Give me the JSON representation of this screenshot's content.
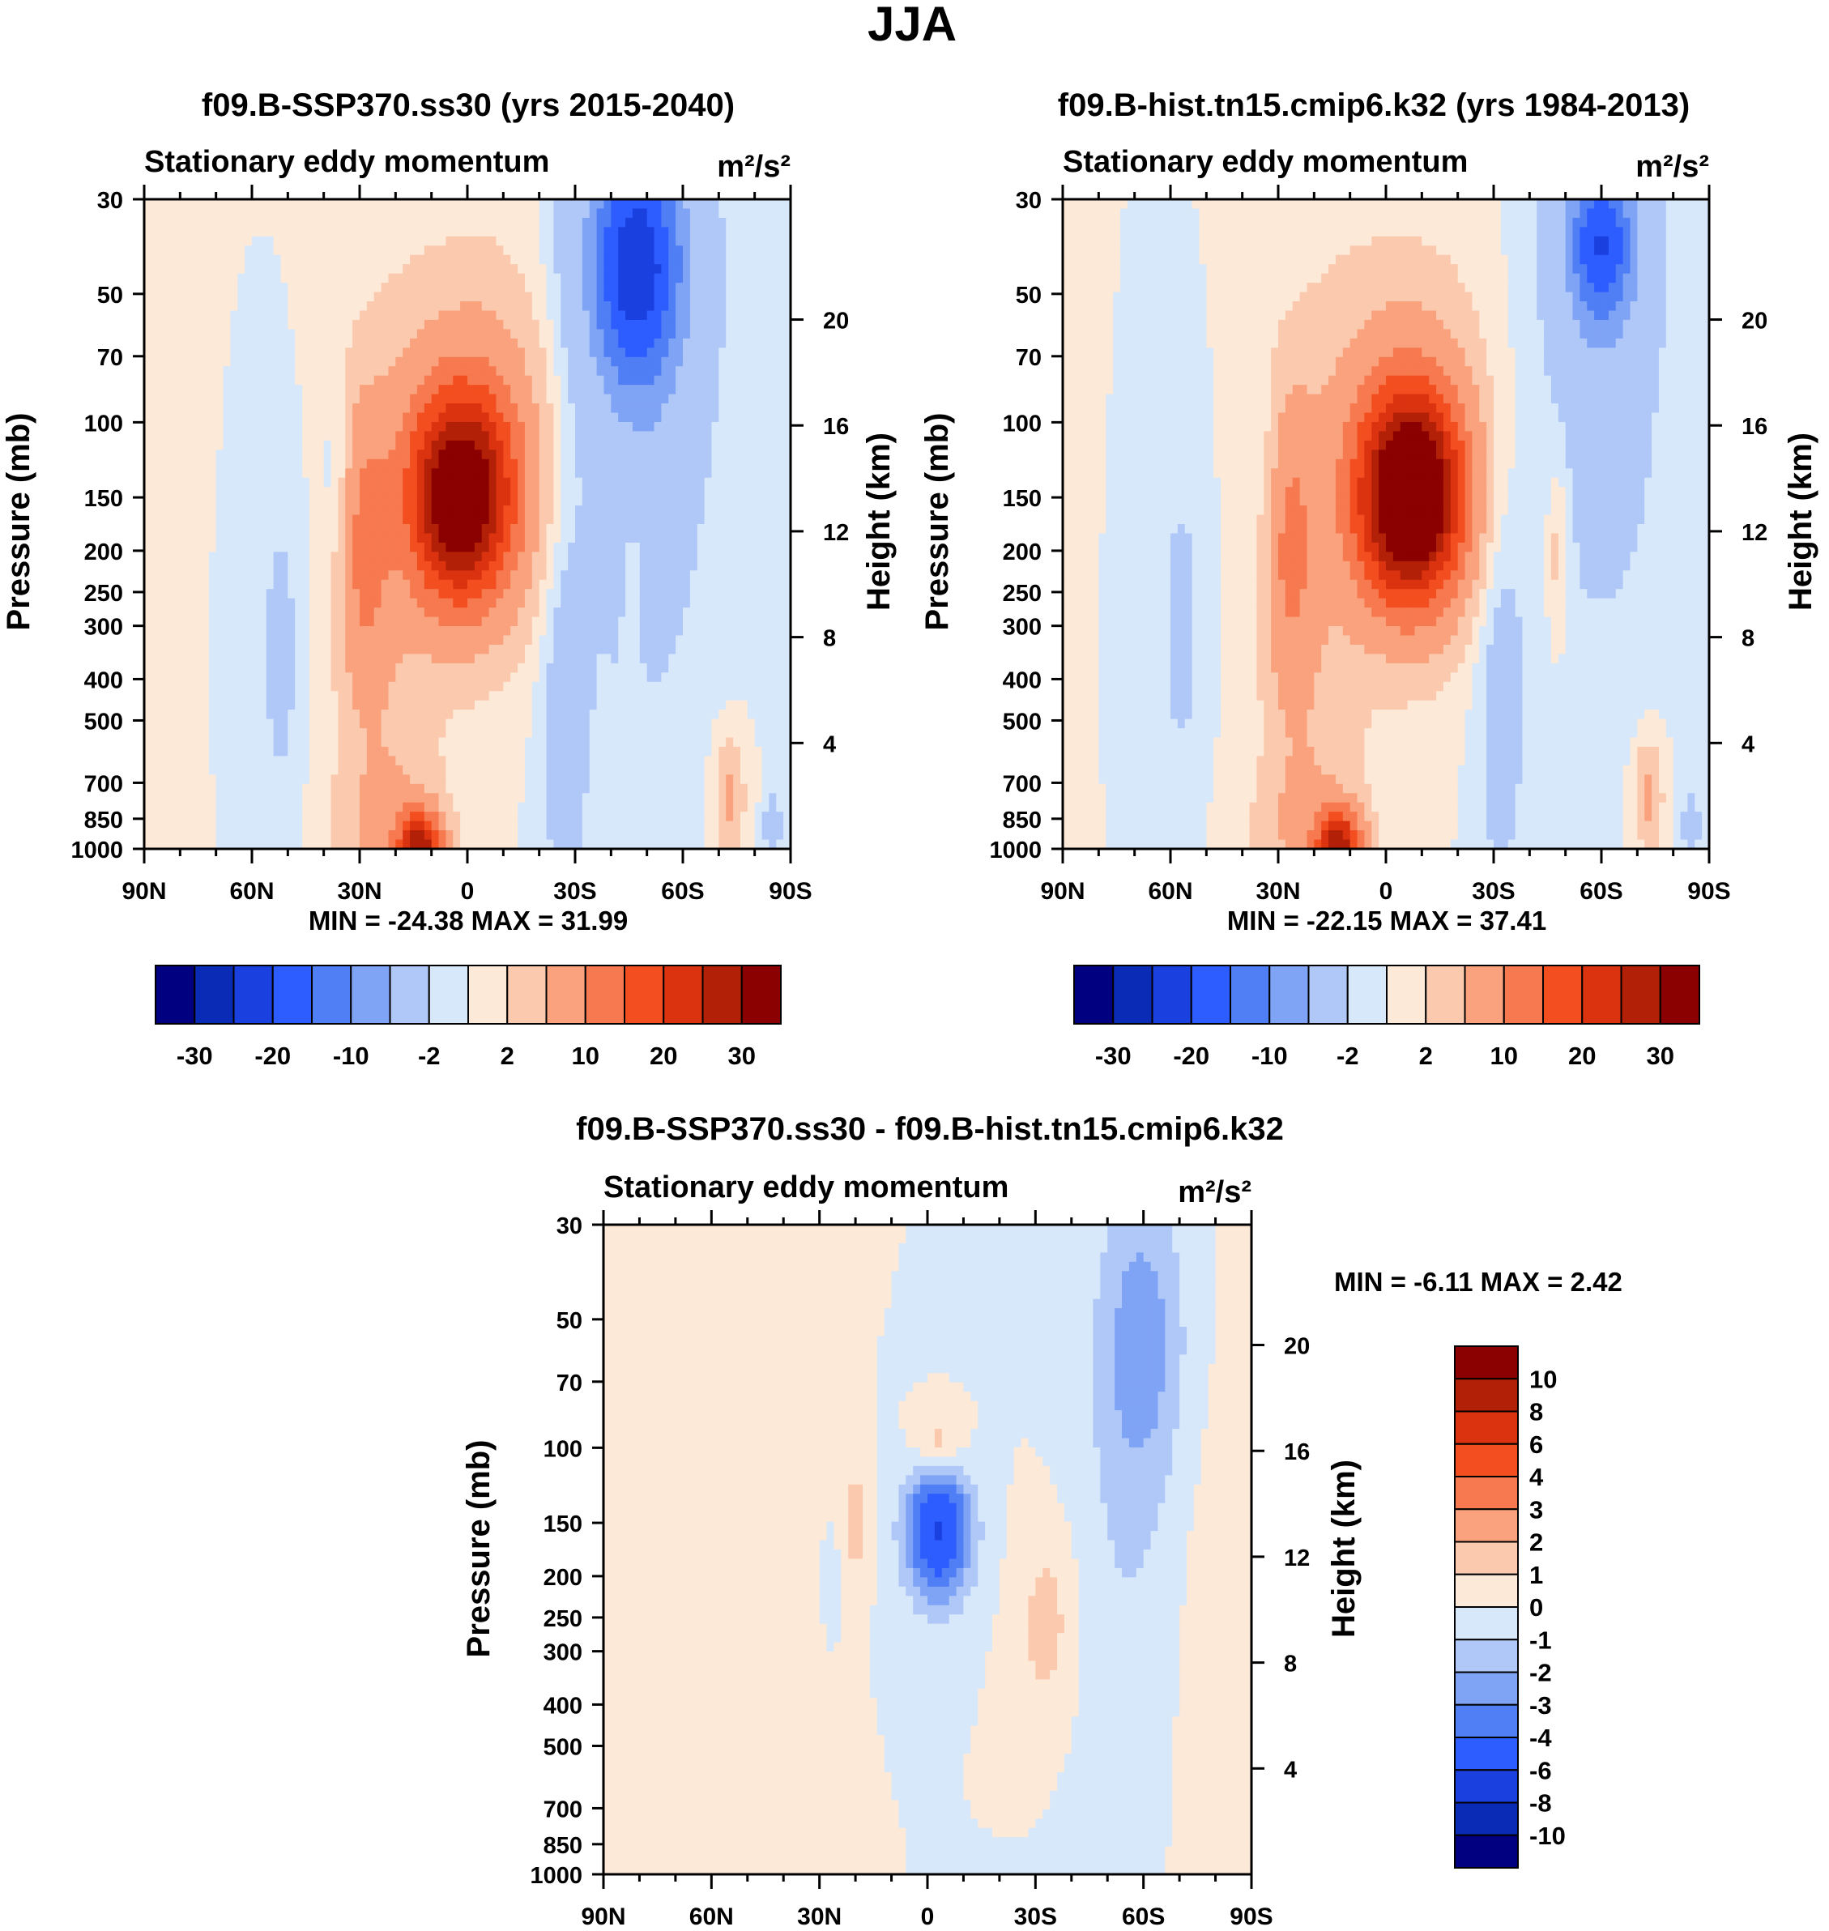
{
  "figure_title": "JJA",
  "chart_data": [
    {
      "type": "contour",
      "title": "f09.B-SSP370.ss30 (yrs 2015-2040)",
      "subtitle_left": "Stationary eddy momentum",
      "units": "m²/s²",
      "xlabel": "",
      "ylabel": "Pressure (mb)",
      "y2label": "Height (km)",
      "xticks": [
        "90N",
        "60N",
        "30N",
        "0",
        "30S",
        "60S",
        "90S"
      ],
      "yticks": [
        30,
        50,
        70,
        100,
        150,
        200,
        250,
        300,
        400,
        500,
        700,
        850,
        1000
      ],
      "y2ticks": [
        4,
        8,
        12,
        16,
        20
      ],
      "ylim": [
        1000,
        30
      ],
      "xlim": [
        90,
        -90
      ],
      "min": -24.38,
      "max": 31.99,
      "stats_text": "MIN = -24.38  MAX =  31.99",
      "colorbar_orientation": "horizontal",
      "colorbar_labels": [
        "-30",
        "-20",
        "-10",
        "-2",
        "2",
        "10",
        "20",
        "30"
      ],
      "blobs": [
        {
          "lat": 2,
          "p": 150,
          "lat_halfwidth": 14,
          "p_spread": 0.55,
          "value": 31.99
        },
        {
          "lat": -3,
          "p": 120,
          "lat_halfwidth": 22,
          "p_spread": 1.0,
          "value": 8
        },
        {
          "lat": 29,
          "p": 200,
          "lat_halfwidth": 7,
          "p_spread": 0.8,
          "value": 9
        },
        {
          "lat": 22,
          "p": 400,
          "lat_halfwidth": 14,
          "p_spread": 2.0,
          "value": 3
        },
        {
          "lat": 13,
          "p": 980,
          "lat_halfwidth": 6,
          "p_spread": 0.18,
          "value": 25
        },
        {
          "lat": 22,
          "p": 900,
          "lat_halfwidth": 15,
          "p_spread": 0.4,
          "value": 4
        },
        {
          "lat": 52,
          "p": 350,
          "lat_halfwidth": 6,
          "p_spread": 0.9,
          "value": -3
        },
        {
          "lat": 36,
          "p": 140,
          "lat_halfwidth": 4,
          "p_spread": 0.5,
          "value": -3
        },
        {
          "lat": -47,
          "p": 42,
          "lat_halfwidth": 14,
          "p_spread": 0.7,
          "value": -24.38
        },
        {
          "lat": -48,
          "p": 80,
          "lat_halfwidth": 18,
          "p_spread": 1.6,
          "value": -6
        },
        {
          "lat": -27,
          "p": 450,
          "lat_halfwidth": 7,
          "p_spread": 1.2,
          "value": -4
        },
        {
          "lat": -73,
          "p": 750,
          "lat_halfwidth": 4,
          "p_spread": 0.3,
          "value": 6
        },
        {
          "lat": -85,
          "p": 880,
          "lat_halfwidth": 2,
          "p_spread": 0.15,
          "value": -8
        },
        {
          "lat": -46,
          "p": 220,
          "lat_halfwidth": 3,
          "p_spread": 0.5,
          "value": 3
        }
      ]
    },
    {
      "type": "contour",
      "title": "f09.B-hist.tn15.cmip6.k32 (yrs 1984-2013)",
      "subtitle_left": "Stationary eddy momentum",
      "units": "m²/s²",
      "xlabel": "",
      "ylabel": "Pressure (mb)",
      "y2label": "Height (km)",
      "xticks": [
        "90N",
        "60N",
        "30N",
        "0",
        "30S",
        "60S",
        "90S"
      ],
      "yticks": [
        30,
        50,
        70,
        100,
        150,
        200,
        250,
        300,
        400,
        500,
        700,
        850,
        1000
      ],
      "y2ticks": [
        4,
        8,
        12,
        16,
        20
      ],
      "ylim": [
        1000,
        30
      ],
      "xlim": [
        90,
        -90
      ],
      "min": -22.15,
      "max": 37.41,
      "stats_text": "MIN = -22.15  MAX =  37.41",
      "colorbar_orientation": "horizontal",
      "colorbar_labels": [
        "-30",
        "-20",
        "-10",
        "-2",
        "2",
        "10",
        "20",
        "30"
      ],
      "blobs": [
        {
          "lat": -7,
          "p": 150,
          "lat_halfwidth": 14,
          "p_spread": 0.55,
          "value": 37.41
        },
        {
          "lat": -5,
          "p": 120,
          "lat_halfwidth": 22,
          "p_spread": 1.0,
          "value": 8
        },
        {
          "lat": 27,
          "p": 200,
          "lat_halfwidth": 7,
          "p_spread": 0.8,
          "value": 9
        },
        {
          "lat": 20,
          "p": 400,
          "lat_halfwidth": 14,
          "p_spread": 2.0,
          "value": 3
        },
        {
          "lat": 13,
          "p": 980,
          "lat_halfwidth": 6,
          "p_spread": 0.18,
          "value": 25
        },
        {
          "lat": 22,
          "p": 900,
          "lat_halfwidth": 15,
          "p_spread": 0.4,
          "value": 4
        },
        {
          "lat": 57,
          "p": 300,
          "lat_halfwidth": 6,
          "p_spread": 0.9,
          "value": -3
        },
        {
          "lat": 33,
          "p": 140,
          "lat_halfwidth": 4,
          "p_spread": 0.5,
          "value": -2
        },
        {
          "lat": -60,
          "p": 38,
          "lat_halfwidth": 10,
          "p_spread": 0.5,
          "value": -22.15
        },
        {
          "lat": -60,
          "p": 70,
          "lat_halfwidth": 18,
          "p_spread": 1.6,
          "value": -4
        },
        {
          "lat": -32,
          "p": 400,
          "lat_halfwidth": 7,
          "p_spread": 1.2,
          "value": -4
        },
        {
          "lat": -73,
          "p": 750,
          "lat_halfwidth": 4,
          "p_spread": 0.3,
          "value": 6
        },
        {
          "lat": -85,
          "p": 880,
          "lat_halfwidth": 2,
          "p_spread": 0.15,
          "value": -8
        },
        {
          "lat": -48,
          "p": 200,
          "lat_halfwidth": 3,
          "p_spread": 0.5,
          "value": 4
        }
      ]
    },
    {
      "type": "contour",
      "title": "f09.B-SSP370.ss30 - f09.B-hist.tn15.cmip6.k32",
      "subtitle_left": "Stationary eddy momentum",
      "units": "m²/s²",
      "xlabel": "",
      "ylabel": "Pressure (mb)",
      "y2label": "Height (km)",
      "xticks": [
        "90N",
        "60N",
        "30N",
        "0",
        "30S",
        "60S",
        "90S"
      ],
      "yticks": [
        30,
        50,
        70,
        100,
        150,
        200,
        250,
        300,
        400,
        500,
        700,
        850,
        1000
      ],
      "y2ticks": [
        4,
        8,
        12,
        16,
        20
      ],
      "ylim": [
        1000,
        30
      ],
      "xlim": [
        90,
        -90
      ],
      "min": -6.11,
      "max": 2.42,
      "stats_text": "MIN =  -6.11  MAX =   2.42",
      "colorbar_orientation": "vertical",
      "colorbar_labels": [
        "10",
        "8",
        "6",
        "4",
        "3",
        "2",
        "1",
        "0",
        "-1",
        "-2",
        "-3",
        "-4",
        "-6",
        "-8",
        "-10"
      ],
      "blobs": [
        {
          "lat": -3,
          "p": 155,
          "lat_halfwidth": 9,
          "p_spread": 0.38,
          "value": -6.11
        },
        {
          "lat": -3,
          "p": 100,
          "lat_halfwidth": 7,
          "p_spread": 0.2,
          "value": 2.42
        },
        {
          "lat": 20,
          "p": 150,
          "lat_halfwidth": 4,
          "p_spread": 0.3,
          "value": 1.6
        },
        {
          "lat": -33,
          "p": 260,
          "lat_halfwidth": 8,
          "p_spread": 0.5,
          "value": 1.5
        },
        {
          "lat": -60,
          "p": 55,
          "lat_halfwidth": 12,
          "p_spread": 0.8,
          "value": -2.2
        },
        {
          "lat": -55,
          "p": 150,
          "lat_halfwidth": 14,
          "p_spread": 1.6,
          "value": -0.9
        },
        {
          "lat": 30,
          "p": 70,
          "lat_halfwidth": 6,
          "p_spread": 1.5,
          "value": 0.6
        },
        {
          "lat": 70,
          "p": 50,
          "lat_halfwidth": 10,
          "p_spread": 1.0,
          "value": 0.6
        },
        {
          "lat": 55,
          "p": 600,
          "lat_halfwidth": 10,
          "p_spread": 1.5,
          "value": 0.6
        },
        {
          "lat": 85,
          "p": 400,
          "lat_halfwidth": 3,
          "p_spread": 1.0,
          "value": 0.5
        },
        {
          "lat": -80,
          "p": 400,
          "lat_halfwidth": 12,
          "p_spread": 2.0,
          "value": 0.5
        },
        {
          "lat": 27,
          "p": 200,
          "lat_halfwidth": 2.5,
          "p_spread": 0.3,
          "value": -1.1
        }
      ]
    }
  ],
  "colors": {
    "neg_scale": [
      "#000080",
      "#0a2bb5",
      "#1a40e0",
      "#2d5cff",
      "#4f7ef5",
      "#7fa3f5",
      "#b0c8f7",
      "#d8e8fb"
    ],
    "pos_scale": [
      "#fde9d7",
      "#fbc9ad",
      "#f9a27d",
      "#f7794f",
      "#f24e1f",
      "#db3210",
      "#b22008",
      "#8b0000"
    ]
  }
}
